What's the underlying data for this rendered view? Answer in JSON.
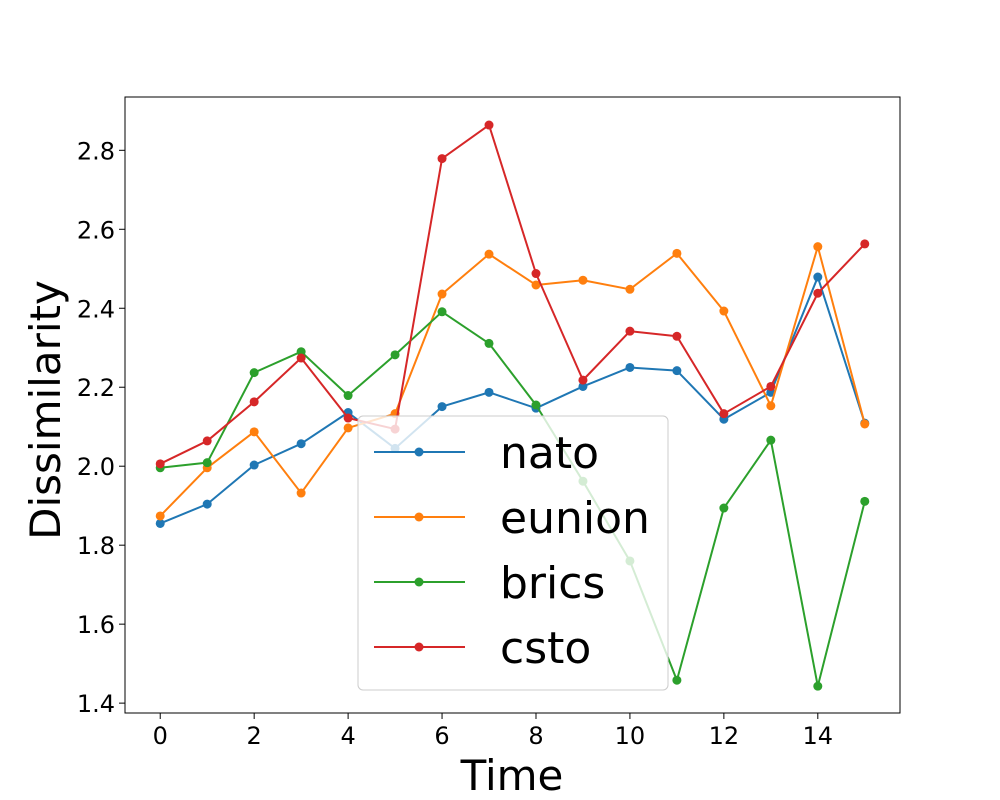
{
  "chart_data": {
    "type": "line",
    "title": "",
    "xlabel": "Time",
    "ylabel": "Dissimilarity",
    "x": [
      0,
      1,
      2,
      3,
      4,
      5,
      6,
      7,
      8,
      9,
      10,
      11,
      12,
      13,
      14,
      15
    ],
    "xlim": [
      -0.75,
      15.75
    ],
    "ylim": [
      1.375,
      2.935
    ],
    "xticks": [
      0,
      2,
      4,
      6,
      8,
      10,
      12,
      14
    ],
    "yticks": [
      1.4,
      1.6,
      1.8,
      2.0,
      2.2,
      2.4,
      2.6,
      2.8
    ],
    "xtick_labels": [
      "0",
      "2",
      "4",
      "6",
      "8",
      "10",
      "12",
      "14"
    ],
    "ytick_labels": [
      "1.4",
      "1.6",
      "1.8",
      "2.0",
      "2.2",
      "2.4",
      "2.6",
      "2.8"
    ],
    "grid": false,
    "legend_position": "center",
    "markers": "circle",
    "series": [
      {
        "name": "nato",
        "color": "#1f77b4",
        "values": [
          1.855,
          1.904,
          2.003,
          2.057,
          2.136,
          2.045,
          2.151,
          2.187,
          2.147,
          2.202,
          2.25,
          2.242,
          2.119,
          2.187,
          2.479,
          2.109
        ]
      },
      {
        "name": "eunion",
        "color": "#ff7f0e",
        "values": [
          1.874,
          1.996,
          2.087,
          1.932,
          2.097,
          2.133,
          2.436,
          2.537,
          2.459,
          2.471,
          2.448,
          2.539,
          2.393,
          2.153,
          2.556,
          2.107
        ]
      },
      {
        "name": "brics",
        "color": "#2ca02c",
        "values": [
          1.996,
          2.009,
          2.237,
          2.29,
          2.179,
          2.282,
          2.391,
          2.311,
          2.155,
          1.962,
          1.76,
          1.458,
          1.894,
          2.066,
          1.443,
          1.911
        ]
      },
      {
        "name": "csto",
        "color": "#d62728",
        "values": [
          2.006,
          2.064,
          2.163,
          2.274,
          2.122,
          2.094,
          2.779,
          2.864,
          2.488,
          2.218,
          2.342,
          2.329,
          2.133,
          2.202,
          2.438,
          2.563
        ]
      }
    ]
  }
}
